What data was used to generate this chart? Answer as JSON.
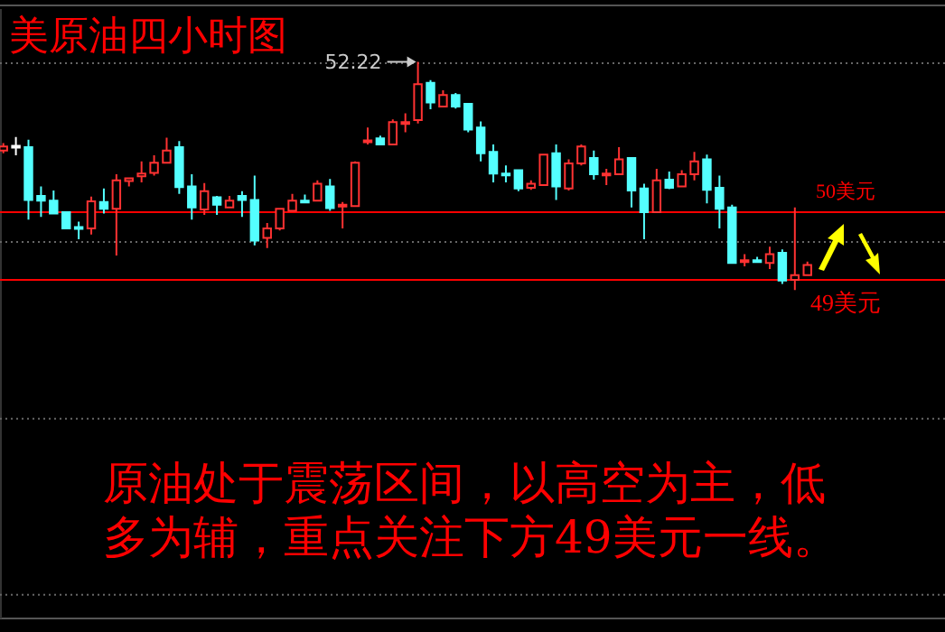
{
  "chart_data": {
    "type": "candlestick",
    "title": "美原油四小时图",
    "categories": [
      null,
      null,
      null,
      null,
      null,
      null,
      null,
      null,
      null,
      null,
      null,
      null,
      null,
      null,
      null,
      null,
      null,
      null,
      null,
      null,
      null,
      null,
      null,
      null,
      null,
      null,
      null,
      null,
      null,
      null,
      null,
      null,
      null,
      null,
      null,
      null,
      null,
      null,
      null,
      null,
      null,
      null,
      null,
      null,
      null,
      null,
      null,
      null,
      null,
      null,
      null,
      null,
      null,
      null,
      null,
      null,
      null,
      null,
      null,
      null,
      null,
      null,
      null,
      null,
      null
    ],
    "ohlc": [
      [
        50.91,
        51.02,
        50.87,
        50.97
      ],
      [
        50.98,
        51.11,
        50.84,
        50.98
      ],
      [
        50.96,
        51.07,
        49.89,
        50.18
      ],
      [
        50.24,
        50.38,
        49.93,
        50.17
      ],
      [
        50.17,
        50.32,
        49.97,
        49.98
      ],
      [
        50.0,
        50.01,
        49.75,
        49.76
      ],
      [
        49.78,
        49.86,
        49.6,
        49.78
      ],
      [
        49.76,
        50.23,
        49.67,
        50.16
      ],
      [
        50.15,
        50.35,
        49.98,
        50.05
      ],
      [
        50.05,
        50.56,
        49.36,
        50.47
      ],
      [
        50.46,
        50.5,
        50.38,
        50.5
      ],
      [
        50.53,
        50.75,
        50.44,
        50.57
      ],
      [
        50.58,
        50.84,
        50.54,
        50.73
      ],
      [
        50.73,
        51.1,
        50.72,
        50.91
      ],
      [
        50.96,
        51.05,
        50.27,
        50.37
      ],
      [
        50.38,
        50.56,
        49.89,
        50.07
      ],
      [
        50.04,
        50.43,
        49.96,
        50.31
      ],
      [
        50.22,
        50.24,
        49.96,
        50.11
      ],
      [
        50.07,
        50.24,
        50.06,
        50.17
      ],
      [
        50.24,
        50.31,
        49.93,
        50.18
      ],
      [
        50.18,
        50.54,
        49.51,
        49.58
      ],
      [
        49.62,
        49.84,
        49.47,
        49.76
      ],
      [
        49.76,
        50.05,
        49.73,
        50.05
      ],
      [
        50.02,
        50.27,
        50.01,
        50.17
      ],
      [
        50.17,
        50.26,
        50.16,
        50.17
      ],
      [
        50.17,
        50.47,
        50.16,
        50.42
      ],
      [
        50.38,
        50.49,
        50.02,
        50.06
      ],
      [
        50.11,
        50.15,
        49.76,
        50.11
      ],
      [
        50.09,
        50.75,
        50.08,
        50.73
      ],
      [
        51.06,
        51.25,
        51.0,
        51.06
      ],
      [
        51.09,
        51.13,
        50.99,
        51.0
      ],
      [
        51.0,
        51.37,
        50.99,
        51.33
      ],
      [
        51.33,
        51.46,
        51.18,
        51.33
      ],
      [
        51.36,
        52.22,
        51.31,
        51.89
      ],
      [
        51.91,
        51.95,
        51.52,
        51.62
      ],
      [
        51.56,
        51.8,
        51.55,
        51.73
      ],
      [
        51.73,
        51.76,
        51.53,
        51.56
      ],
      [
        51.6,
        51.6,
        51.18,
        51.22
      ],
      [
        51.25,
        51.34,
        50.75,
        50.87
      ],
      [
        50.89,
        51.0,
        50.44,
        50.57
      ],
      [
        50.57,
        50.69,
        50.44,
        50.57
      ],
      [
        50.62,
        50.62,
        50.31,
        50.35
      ],
      [
        50.36,
        50.47,
        50.33,
        50.42
      ],
      [
        50.4,
        50.85,
        50.39,
        50.85
      ],
      [
        50.87,
        51.0,
        50.18,
        50.38
      ],
      [
        50.35,
        50.78,
        50.32,
        50.72
      ],
      [
        50.72,
        51.0,
        50.69,
        50.97
      ],
      [
        50.8,
        50.91,
        50.48,
        50.56
      ],
      [
        50.57,
        50.64,
        50.4,
        50.57
      ],
      [
        50.56,
        50.96,
        50.55,
        50.78
      ],
      [
        50.8,
        50.8,
        50.07,
        50.32
      ],
      [
        50.35,
        50.42,
        49.6,
        50.0
      ],
      [
        50.0,
        50.64,
        49.99,
        50.47
      ],
      [
        50.48,
        50.6,
        50.34,
        50.36
      ],
      [
        50.38,
        50.62,
        50.37,
        50.56
      ],
      [
        50.56,
        50.89,
        50.47,
        50.75
      ],
      [
        50.78,
        50.85,
        50.13,
        50.33
      ],
      [
        50.36,
        50.54,
        49.76,
        50.05
      ],
      [
        50.07,
        50.11,
        49.24,
        49.25
      ],
      [
        49.29,
        49.38,
        49.2,
        49.29
      ],
      [
        49.29,
        49.34,
        49.25,
        49.29
      ],
      [
        49.25,
        49.49,
        49.16,
        49.38
      ],
      [
        49.4,
        49.45,
        48.94,
        48.99
      ],
      [
        49.0,
        50.07,
        48.85,
        49.07
      ],
      [
        49.07,
        49.27,
        49.06,
        49.22
      ]
    ],
    "colors": [
      "#ff3232",
      "#ffffff",
      "#54ffff",
      "#54ffff",
      "#54ffff",
      "#54ffff",
      "#54ffff",
      "#ff3232",
      "#54ffff",
      "#ff3232",
      "#ff3232",
      "#ff3232",
      "#ff3232",
      "#ff3232",
      "#54ffff",
      "#54ffff",
      "#ff3232",
      "#54ffff",
      "#ff3232",
      "#54ffff",
      "#54ffff",
      "#ff3232",
      "#ff3232",
      "#ff3232",
      "#54ffff",
      "#ff3232",
      "#54ffff",
      "#ff3232",
      "#ff3232",
      "#ff3232",
      "#54ffff",
      "#ff3232",
      "#ff3232",
      "#ff3232",
      "#54ffff",
      "#ff3232",
      "#54ffff",
      "#54ffff",
      "#54ffff",
      "#54ffff",
      "#54ffff",
      "#54ffff",
      "#ff3232",
      "#ff3232",
      "#54ffff",
      "#ff3232",
      "#ff3232",
      "#54ffff",
      "#ff3232",
      "#ff3232",
      "#54ffff",
      "#54ffff",
      "#ff3232",
      "#54ffff",
      "#ff3232",
      "#ff3232",
      "#54ffff",
      "#54ffff",
      "#54ffff",
      "#ff3232",
      "#54ffff",
      "#ff3232",
      "#54ffff",
      "#ff3232",
      "#ff3232"
    ],
    "ylim": [
      44,
      53
    ],
    "yticks": [
      {
        "value": 52.2,
        "label": null
      },
      {
        "value": 49.56,
        "label": null
      },
      {
        "value": 46.95,
        "label": null
      },
      {
        "value": 44.35,
        "label": null
      }
    ],
    "grid": "y",
    "ref_lines": [
      {
        "axis": "y",
        "value": 50,
        "label": "50美元",
        "color": "#ff0000"
      },
      {
        "axis": "y",
        "value": 49,
        "label": "49美元",
        "color": "#ff0000"
      }
    ],
    "annotations": [
      "52.22",
      "原油处于震荡区间，以高空为主，低多为辅，重点关注下方49美元一线。"
    ]
  }
}
